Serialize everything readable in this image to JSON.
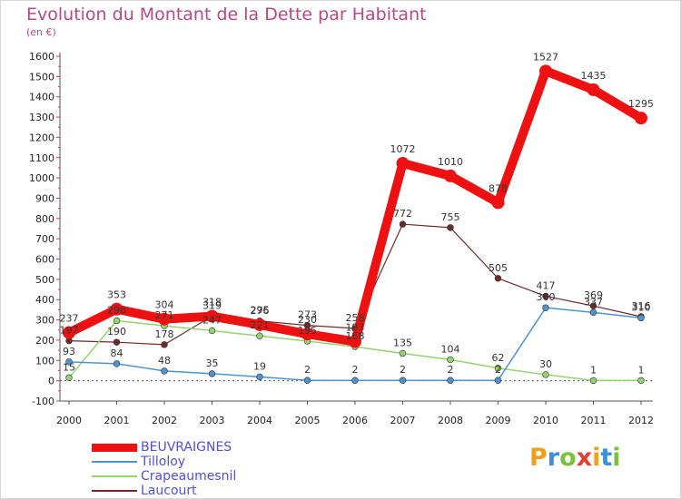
{
  "chart_title": "Evolution du Montant de la Dette par Habitant",
  "chart_subtitle": "(en €)",
  "logo_text": "Proxiti",
  "chart_data": {
    "type": "line",
    "title": "Evolution du Montant de la Dette par Habitant",
    "subtitle": "(en €)",
    "xlabel": "",
    "ylabel": "",
    "x": [
      2000,
      2001,
      2002,
      2003,
      2004,
      2005,
      2006,
      2007,
      2008,
      2009,
      2010,
      2011,
      2012
    ],
    "x_labels": [
      "2000",
      "2001",
      "2002",
      "2003",
      "2004",
      "2005",
      "2006",
      "2007",
      "2008",
      "2009",
      "2010",
      "2011",
      "2012"
    ],
    "ylim": [
      -100,
      1600
    ],
    "y_ticks": [
      -100,
      0,
      100,
      200,
      300,
      400,
      500,
      600,
      700,
      800,
      900,
      1000,
      1100,
      1200,
      1300,
      1400,
      1500,
      1600
    ],
    "grid": false,
    "legend_position": "bottom-left",
    "series": [
      {
        "name": "BEUVRAIGNES",
        "color": "#ee1111",
        "values": [
          237,
          353,
          304,
          318,
          276,
          230,
          193,
          1072,
          1010,
          878,
          1527,
          1435,
          1295
        ]
      },
      {
        "name": "Tilloloy",
        "color": "#4f93cf",
        "values": [
          93,
          84,
          48,
          35,
          19,
          2,
          2,
          2,
          2,
          2,
          360,
          337,
          310
        ]
      },
      {
        "name": "Crapeaumesnil",
        "color": "#93d46e",
        "values": [
          15,
          296,
          271,
          247,
          221,
          195,
          168,
          135,
          104,
          62,
          30,
          1,
          1
        ]
      },
      {
        "name": "Laucourt",
        "color": "#6e2a2a",
        "values": [
          197,
          190,
          178,
          319,
          295,
          273,
          258,
          772,
          755,
          505,
          417,
          369,
          316
        ]
      }
    ]
  }
}
